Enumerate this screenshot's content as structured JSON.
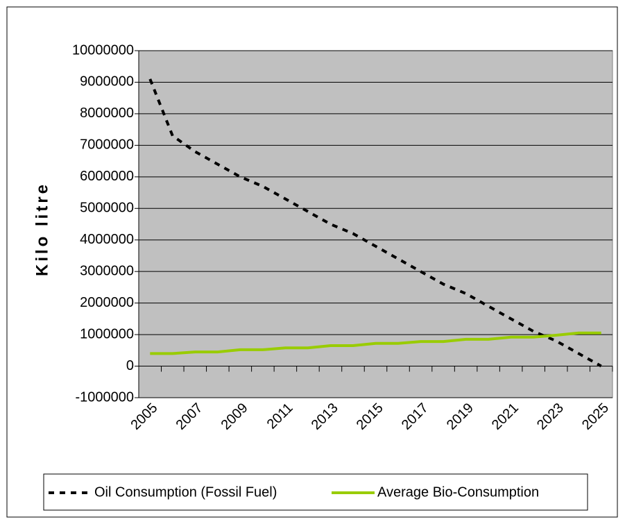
{
  "chart_data": {
    "type": "line",
    "y_label": "Kilo litre",
    "categories": [
      "2005",
      null,
      "2007",
      null,
      "2009",
      null,
      "2011",
      null,
      "2013",
      null,
      "2015",
      null,
      "2017",
      null,
      "2019",
      null,
      "2021",
      null,
      "2023",
      null,
      "2025"
    ],
    "series": [
      {
        "name": "Oil Consumption (Fossil Fuel)",
        "color": "#000000",
        "dashed": true,
        "values": [
          9100000,
          7300000,
          6800000,
          6400000,
          6000000,
          5700000,
          5300000,
          4900000,
          4500000,
          4200000,
          3800000,
          3400000,
          3000000,
          2600000,
          2300000,
          1900000,
          1500000,
          1100000,
          800000,
          400000,
          0
        ]
      },
      {
        "name": "Average Bio-Consumption",
        "color": "#99cc00",
        "dashed": false,
        "values": [
          400000,
          400000,
          450000,
          450000,
          520000,
          520000,
          580000,
          580000,
          650000,
          650000,
          720000,
          720000,
          780000,
          780000,
          850000,
          850000,
          920000,
          920000,
          980000,
          1050000,
          1050000
        ]
      }
    ],
    "ylim": [
      -1000000,
      10000000
    ],
    "yticks": [
      -1000000,
      0,
      1000000,
      2000000,
      3000000,
      4000000,
      5000000,
      6000000,
      7000000,
      8000000,
      9000000,
      10000000
    ],
    "grid": true,
    "legend": "bottom"
  }
}
